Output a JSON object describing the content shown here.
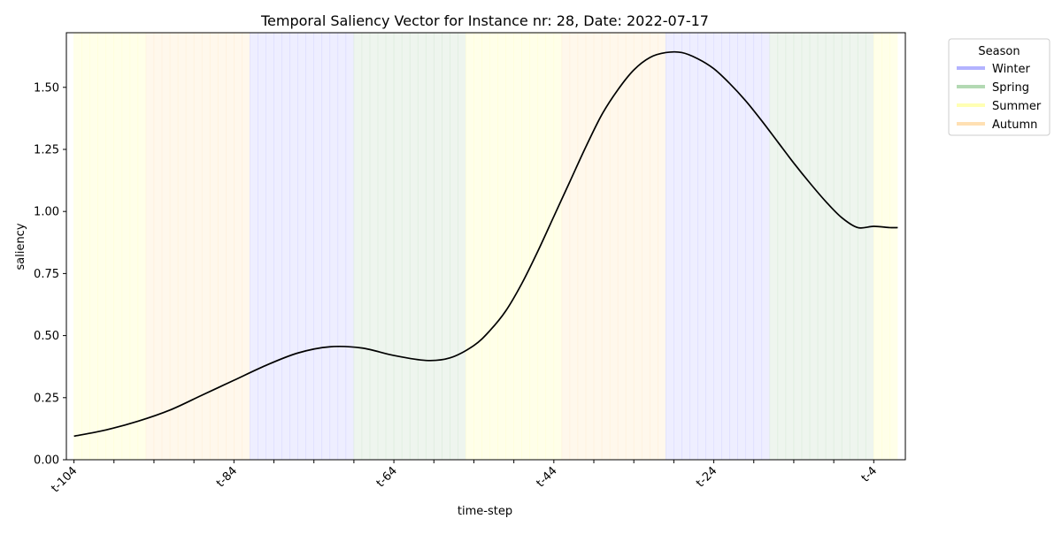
{
  "chart_data": {
    "type": "line",
    "title": "Temporal Saliency Vector for Instance nr: 28, Date: 2022-07-17",
    "xlabel": "time-step",
    "ylabel": "saliency",
    "x_range": [
      -104,
      -1
    ],
    "xlim": [
      -104.95,
      -0.05
    ],
    "ylim": [
      0,
      1.72
    ],
    "y_ticks": [
      "0.00",
      "0.25",
      "0.50",
      "0.75",
      "1.00",
      "1.25",
      "1.50"
    ],
    "y_tick_values": [
      0,
      0.25,
      0.5,
      0.75,
      1.0,
      1.25,
      1.5
    ],
    "x_tick_labels": [
      "t-104",
      "t-84",
      "t-64",
      "t-44",
      "t-24",
      "t-4"
    ],
    "x_tick_values": [
      -104,
      -84,
      -64,
      -44,
      -24,
      -4
    ],
    "x_minor_tick_values": [
      -99,
      -94,
      -89,
      -79,
      -74,
      -69,
      -59,
      -54,
      -49,
      -39,
      -34,
      -29,
      -19,
      -14,
      -9
    ],
    "grid": false,
    "legend": {
      "title": "Season",
      "placement": "outside-top-right",
      "entries": [
        {
          "name": "Winter",
          "color": "#b3b3ff"
        },
        {
          "name": "Spring",
          "color": "#b3d9b3"
        },
        {
          "name": "Summer",
          "color": "#ffffb3"
        },
        {
          "name": "Autumn",
          "color": "#ffe0b3"
        }
      ]
    },
    "season_bands": [
      {
        "season": "Summer",
        "from": -104,
        "to": -95
      },
      {
        "season": "Autumn",
        "from": -95,
        "to": -82
      },
      {
        "season": "Winter",
        "from": -82,
        "to": -69
      },
      {
        "season": "Spring",
        "from": -69,
        "to": -55
      },
      {
        "season": "Summer",
        "from": -55,
        "to": -43
      },
      {
        "season": "Autumn",
        "from": -43,
        "to": -30
      },
      {
        "season": "Winter",
        "from": -30,
        "to": -17
      },
      {
        "season": "Spring",
        "from": -17,
        "to": -4
      },
      {
        "season": "Summer",
        "from": -4,
        "to": -1
      }
    ],
    "season_fill_colors": {
      "Winter": "#eeeeff",
      "Spring": "#eef5ee",
      "Summer": "#ffffe9",
      "Autumn": "#fff8ec"
    },
    "series": [
      {
        "color": "#000000",
        "x": [
          -104,
          -100,
          -96,
          -92,
          -88,
          -84,
          -80,
          -76,
          -72,
          -68,
          -64,
          -60,
          -57,
          -54,
          -52,
          -50,
          -48,
          -46,
          -44,
          -42,
          -40,
          -38,
          -36,
          -34,
          -32,
          -30,
          -28,
          -26,
          -24,
          -22,
          -20,
          -18,
          -16,
          -14,
          -12,
          -10,
          -8,
          -6,
          -4,
          -2,
          -1
        ],
        "y": [
          0.095,
          0.12,
          0.155,
          0.2,
          0.26,
          0.32,
          0.38,
          0.43,
          0.455,
          0.45,
          0.42,
          0.4,
          0.41,
          0.46,
          0.52,
          0.6,
          0.71,
          0.84,
          0.98,
          1.12,
          1.26,
          1.39,
          1.49,
          1.57,
          1.62,
          1.64,
          1.64,
          1.615,
          1.575,
          1.515,
          1.445,
          1.365,
          1.28,
          1.195,
          1.115,
          1.04,
          0.975,
          0.935,
          0.94,
          0.935,
          0.935
        ]
      }
    ]
  }
}
